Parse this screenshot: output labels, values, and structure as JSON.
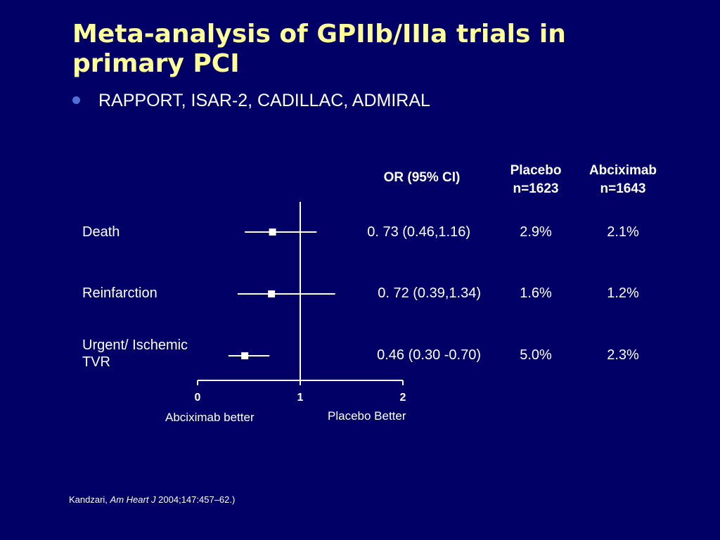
{
  "slide": {
    "title": "Meta-analysis of GPIIb/IIIa trials in primary PCI",
    "bullet": "RAPPORT, ISAR-2, CADILLAC, ADMIRAL",
    "source_prefix": "Kandzari, ",
    "source_journal": "Am Heart J",
    "source_suffix": " 2004;147:457–62.)"
  },
  "table": {
    "headers": {
      "or": "OR (95% CI)",
      "placebo_1": "Placebo",
      "placebo_2": "n=1623",
      "abciximab_1": "Abciximab",
      "abciximab_2": "n=1643"
    },
    "rows": [
      {
        "label": "Death",
        "ci": "0. 73 (0.46,1.16)",
        "placebo": "2.9%",
        "abciximab": "2.1%"
      },
      {
        "label": "Reinfarction",
        "ci": "0. 72 (0.39,1.34)",
        "placebo": "1.6%",
        "abciximab": "1.2%"
      },
      {
        "label": "Urgent/ Ischemic TVR",
        "ci": "0.46 (0.30 -0.70)",
        "placebo": "5.0%",
        "abciximab": "2.3%"
      }
    ]
  },
  "axis": {
    "left_caption": "Abciximab better",
    "right_caption": "Placebo Better"
  },
  "colors": {
    "background": "#000066",
    "title": "#ffff99",
    "text": "#ffffff",
    "bullet": "#4d6fd6"
  },
  "chart_data": {
    "type": "forest",
    "categories": [
      "Death",
      "Reinfarction",
      "Urgent/ Ischemic TVR"
    ],
    "or": [
      0.73,
      0.72,
      0.46
    ],
    "ci_low": [
      0.46,
      0.39,
      0.3
    ],
    "ci_high": [
      1.16,
      1.34,
      0.7
    ],
    "xlim": [
      0,
      2
    ],
    "xticks": [
      0,
      1,
      2
    ],
    "reference_line": 1
  }
}
